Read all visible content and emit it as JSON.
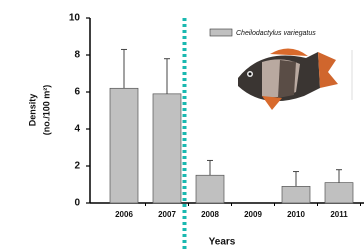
{
  "chart_data": {
    "type": "bar",
    "categories": [
      "2006",
      "2007",
      "2008",
      "2009",
      "2010",
      "2011"
    ],
    "values": [
      6.2,
      5.9,
      1.5,
      0,
      0.9,
      1.1
    ],
    "errors": [
      2.1,
      1.9,
      0.8,
      null,
      0.8,
      0.7
    ],
    "color": "#c0c0c0",
    "ylim": [
      0,
      10
    ],
    "yticks": [
      0,
      2,
      4,
      6,
      8,
      10
    ],
    "ylabel": [
      "Density",
      "(no./100 m²)"
    ],
    "xlabel": "Years",
    "legend": "Cheilodactylus variegatus",
    "divider_color": "#1ab8b0"
  }
}
